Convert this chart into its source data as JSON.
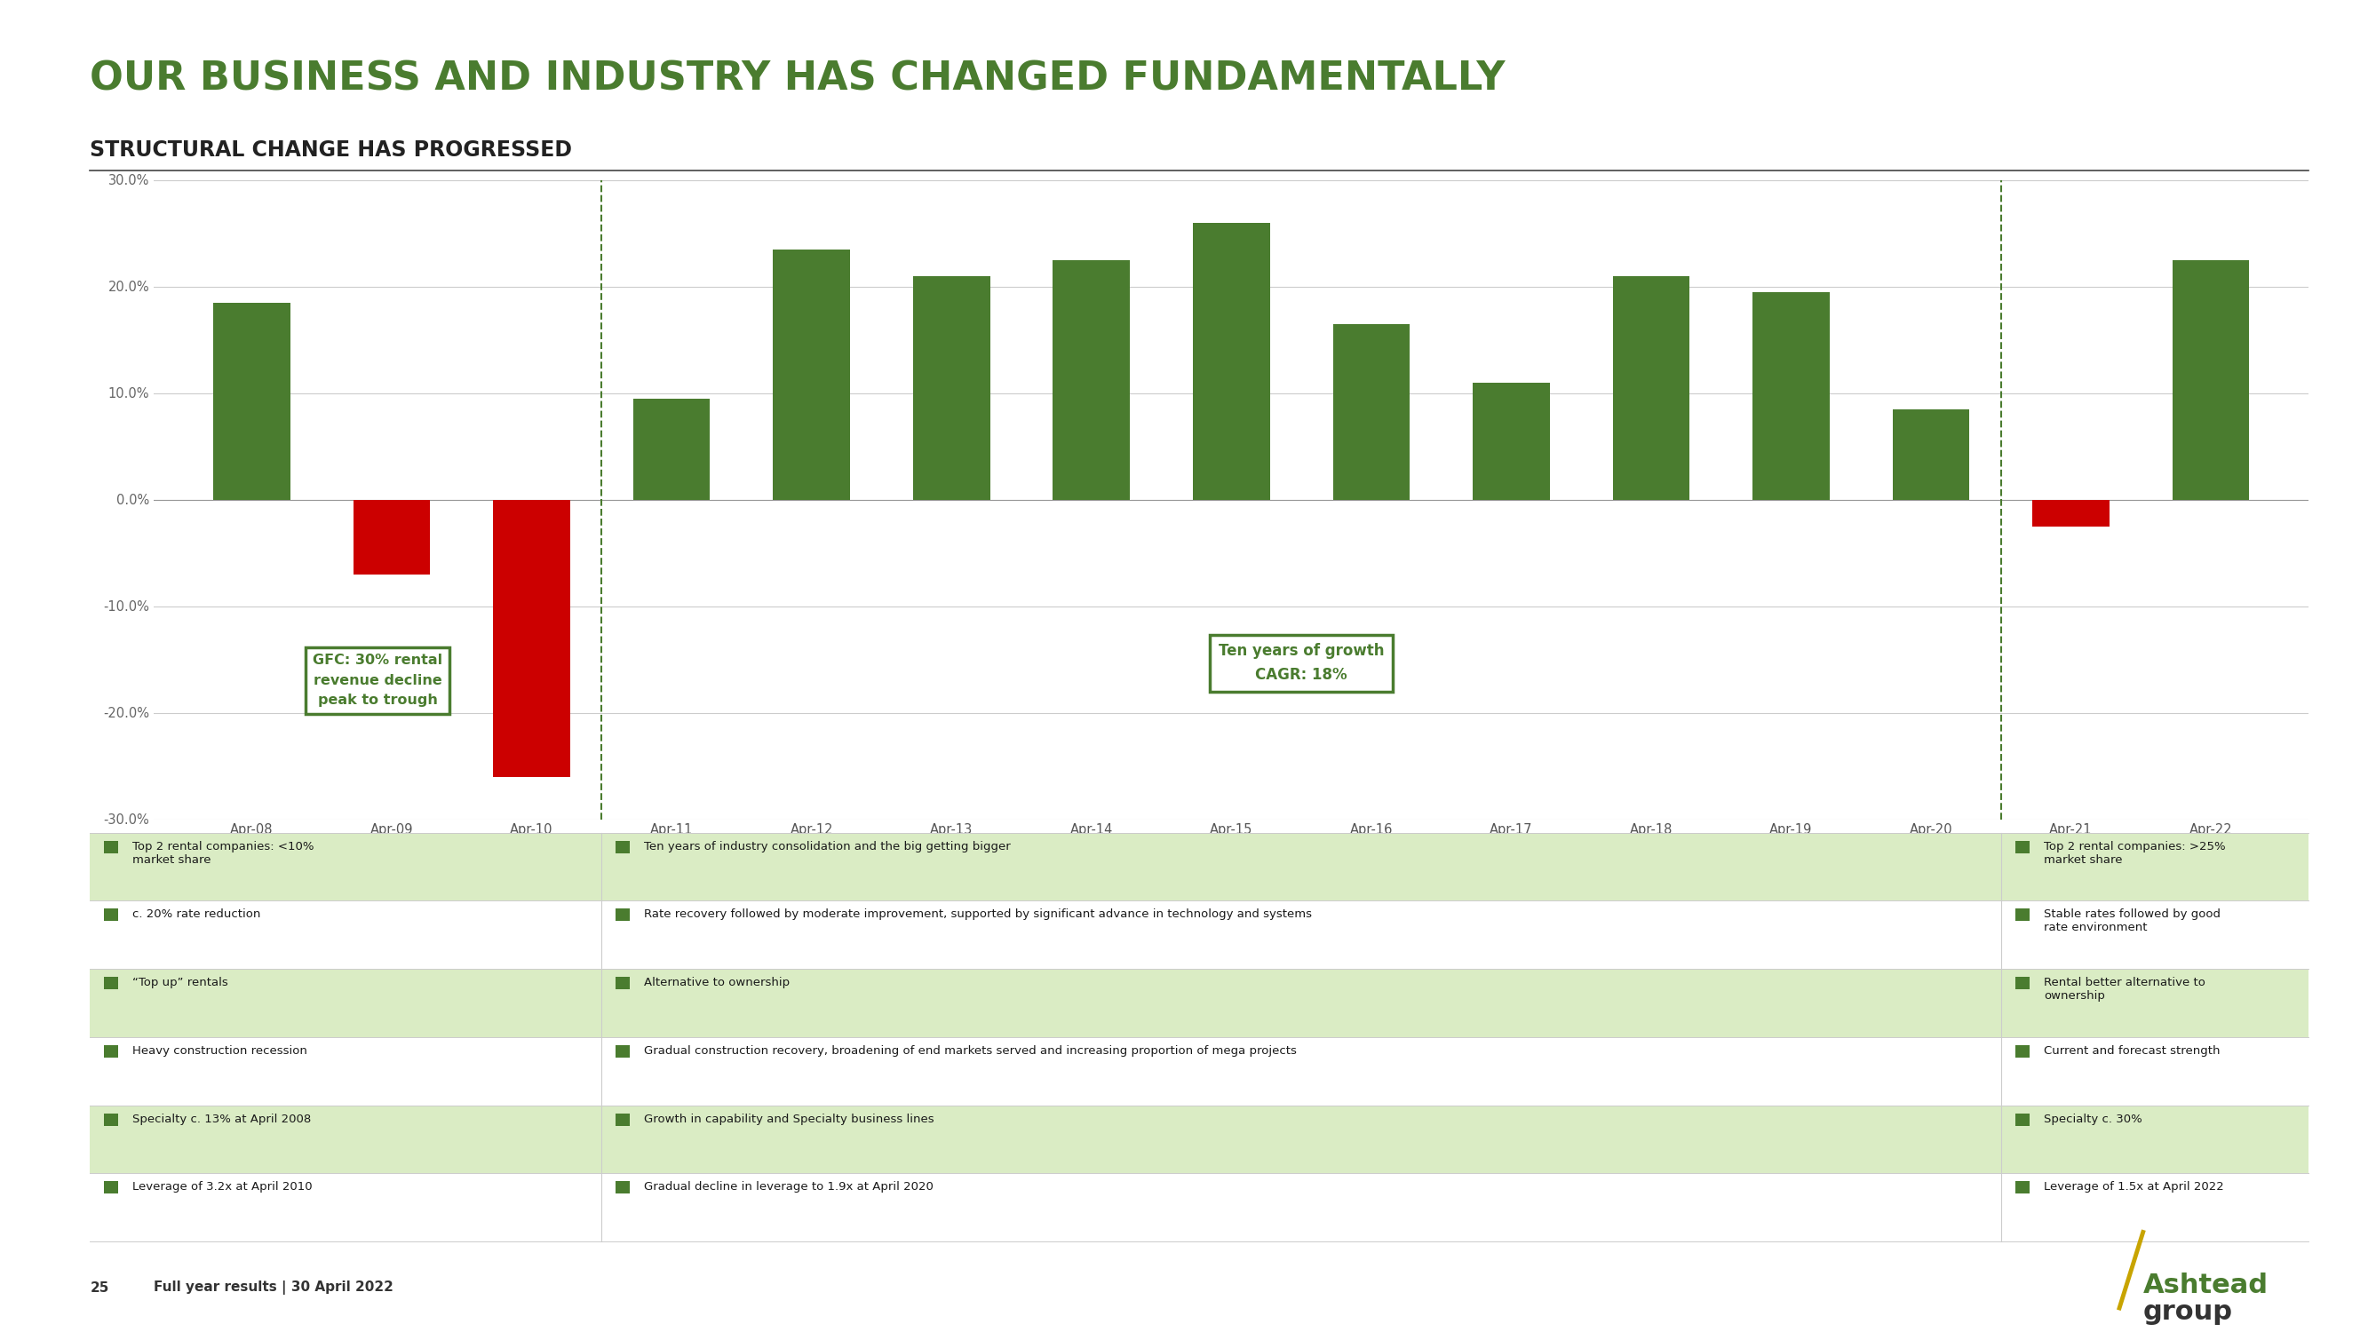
{
  "title": "OUR BUSINESS AND INDUSTRY HAS CHANGED FUNDAMENTALLY",
  "subtitle": "STRUCTURAL CHANGE HAS PROGRESSED",
  "title_color": "#4a7c2f",
  "subtitle_color": "#222222",
  "background_color": "#ffffff",
  "bar_labels": [
    "Apr-08",
    "Apr-09",
    "Apr-10",
    "Apr-11",
    "Apr-12",
    "Apr-13",
    "Apr-14",
    "Apr-15",
    "Apr-16",
    "Apr-17",
    "Apr-18",
    "Apr-19",
    "Apr-20",
    "Apr-21",
    "Apr-22"
  ],
  "bar_values": [
    18.5,
    -7.0,
    -26.0,
    9.5,
    23.5,
    21.0,
    22.5,
    26.0,
    16.5,
    11.0,
    21.0,
    19.5,
    8.5,
    -2.5,
    22.5
  ],
  "bar_colors": [
    "#4a7c2f",
    "#cc0000",
    "#cc0000",
    "#4a7c2f",
    "#4a7c2f",
    "#4a7c2f",
    "#4a7c2f",
    "#4a7c2f",
    "#4a7c2f",
    "#4a7c2f",
    "#4a7c2f",
    "#4a7c2f",
    "#4a7c2f",
    "#cc0000",
    "#4a7c2f"
  ],
  "ylim": [
    -30.0,
    30.0
  ],
  "yticks": [
    -30.0,
    -20.0,
    -10.0,
    0.0,
    10.0,
    20.0,
    30.0
  ],
  "yticklabels": [
    "-30.0%",
    "-20.0%",
    "-10.0%",
    "0.0%",
    "10.0%",
    "20.0%",
    "30.0%"
  ],
  "gfc_box_text": "GFC: 30% rental\nrevenue decline\npeak to trough",
  "growth_box_text": "Ten years of growth\nCAGR: 18%",
  "green_dark": "#4a7c2f",
  "green_light": "#daecc4",
  "table_rows": [
    [
      "Top 2 rental companies: <10%\nmarket share",
      "Ten years of industry consolidation and the big getting bigger",
      "Top 2 rental companies: >25%\nmarket share"
    ],
    [
      "c. 20% rate reduction",
      "Rate recovery followed by moderate improvement, supported by significant advance in technology and systems",
      "Stable rates followed by good\nrate environment"
    ],
    [
      "“Top up” rentals",
      "Alternative to ownership",
      "Rental better alternative to\nownership"
    ],
    [
      "Heavy construction recession",
      "Gradual construction recovery, broadening of end markets served and increasing proportion of mega projects",
      "Current and forecast strength"
    ],
    [
      "Specialty c. 13% at April 2008",
      "Growth in capability and Specialty business lines",
      "Specialty c. 30%"
    ],
    [
      "Leverage of 3.2x at April 2010",
      "Gradual decline in leverage to 1.9x at April 2020",
      "Leverage of 1.5x at April 2022"
    ]
  ],
  "row_shading": [
    true,
    false,
    true,
    false,
    true,
    false
  ],
  "footer_num": "25",
  "footer_text": "Full year results | 30 April 2022"
}
